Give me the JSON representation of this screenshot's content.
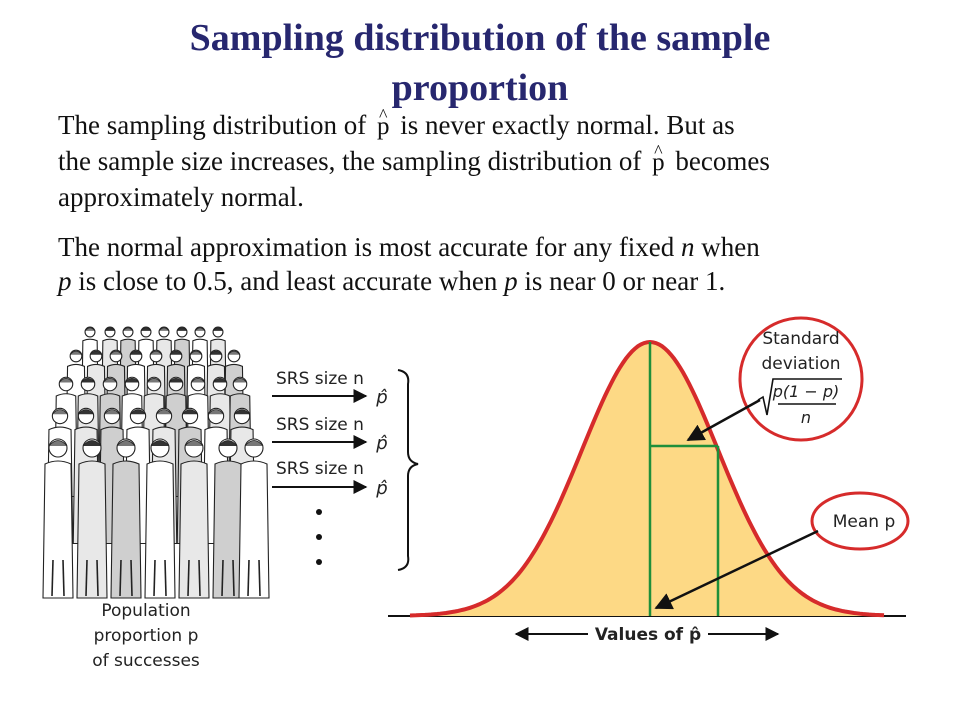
{
  "slide": {
    "title_line1": "Sampling distribution of the sample",
    "title_line2": "proportion",
    "para1": {
      "a": "The sampling distribution of",
      "b": "is never exactly normal. But as",
      "c": "the sample size increases, the sampling distribution of",
      "d": "becomes",
      "e": "approximately normal.",
      "symbol": "p",
      "hat": "^"
    },
    "para2": {
      "a": "The normal approximation is most accurate for any fixed",
      "n": "n",
      "b": "when",
      "p1": "p",
      "c": "is close to 0.5, and least accurate when",
      "p2": "p",
      "d": "is near 0 or near 1."
    }
  },
  "figure": {
    "population_label": [
      "Population",
      "proportion p",
      "of successes"
    ],
    "srs_labels": [
      "SRS size n",
      "SRS size n",
      "SRS size n"
    ],
    "sample_stat": "p̂",
    "ellipsis": "⋮",
    "axis_label": "Values of p̂",
    "callout_sd": {
      "line1": "Standard",
      "line2": "deviation",
      "numerator": "p(1 − p)",
      "denominator": "n"
    },
    "callout_mean": "Mean p",
    "colors": {
      "curve_fill": "#fdd985",
      "curve_stroke": "#d62b2b",
      "guide_lines": "#1f8f3a",
      "callout_ring": "#d62b2b",
      "title": "#27276f"
    }
  }
}
